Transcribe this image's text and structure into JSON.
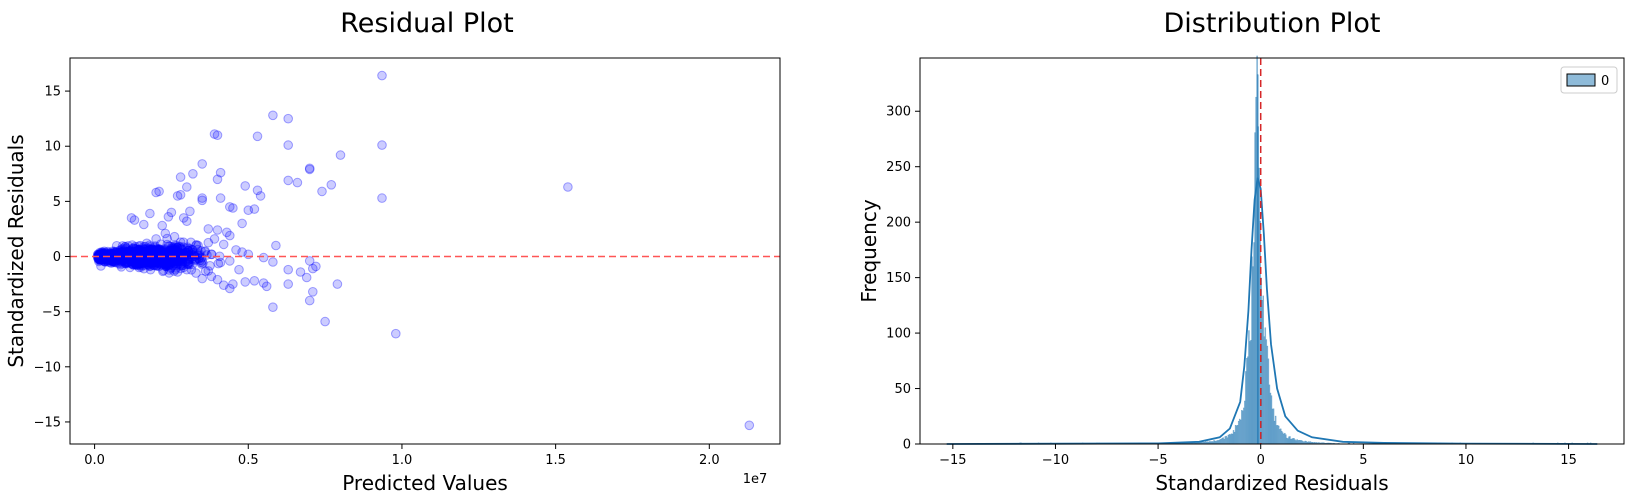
{
  "chart_data": [
    {
      "type": "scatter",
      "title": "Residual Plot",
      "xlabel": "Predicted Values",
      "ylabel": "Standardized Residuals",
      "x_offset_label": "1e7",
      "xlim": [
        -0.08,
        2.23
      ],
      "ylim": [
        -17,
        18
      ],
      "xticks": [
        0.0,
        0.5,
        1.0,
        1.5,
        2.0
      ],
      "xtick_labels": [
        "0.0",
        "0.5",
        "1.0",
        "1.5",
        "2.0"
      ],
      "yticks": [
        -15,
        -10,
        -5,
        0,
        5,
        10,
        15
      ],
      "ytick_labels": [
        "−15",
        "−10",
        "−5",
        "0",
        "5",
        "10",
        "15"
      ],
      "grid": false,
      "point_color": "#0000ff",
      "reference_line": {
        "y": 0,
        "color": "#ff5555",
        "style": "dashed"
      },
      "points": [
        [
          0.935,
          16.4
        ],
        [
          0.58,
          12.8
        ],
        [
          0.63,
          12.5
        ],
        [
          0.39,
          11.1
        ],
        [
          0.4,
          11.0
        ],
        [
          0.53,
          10.9
        ],
        [
          0.63,
          10.1
        ],
        [
          0.935,
          10.1
        ],
        [
          0.8,
          9.2
        ],
        [
          0.35,
          8.4
        ],
        [
          0.7,
          8.0
        ],
        [
          0.7,
          7.9
        ],
        [
          0.41,
          7.6
        ],
        [
          0.32,
          7.5
        ],
        [
          0.28,
          7.2
        ],
        [
          0.4,
          7.0
        ],
        [
          0.63,
          6.9
        ],
        [
          0.66,
          6.7
        ],
        [
          0.77,
          6.5
        ],
        [
          0.49,
          6.4
        ],
        [
          0.3,
          6.3
        ],
        [
          1.54,
          6.3
        ],
        [
          0.53,
          6.0
        ],
        [
          0.74,
          5.9
        ],
        [
          0.21,
          5.9
        ],
        [
          0.2,
          5.8
        ],
        [
          0.28,
          5.6
        ],
        [
          0.27,
          5.5
        ],
        [
          0.54,
          5.5
        ],
        [
          0.41,
          5.3
        ],
        [
          0.35,
          5.3
        ],
        [
          0.35,
          5.1
        ],
        [
          0.935,
          5.3
        ],
        [
          0.44,
          4.5
        ],
        [
          0.45,
          4.4
        ],
        [
          0.52,
          4.3
        ],
        [
          0.5,
          4.2
        ],
        [
          0.31,
          4.1
        ],
        [
          0.25,
          4.0
        ],
        [
          0.18,
          3.9
        ],
        [
          0.12,
          3.5
        ],
        [
          0.13,
          3.3
        ],
        [
          0.24,
          3.6
        ],
        [
          0.29,
          3.5
        ],
        [
          0.3,
          3.2
        ],
        [
          0.48,
          3.0
        ],
        [
          0.22,
          2.8
        ],
        [
          0.16,
          2.9
        ],
        [
          0.37,
          2.5
        ],
        [
          0.4,
          2.4
        ],
        [
          0.43,
          2.2
        ],
        [
          0.44,
          1.9
        ],
        [
          0.39,
          1.6
        ],
        [
          0.42,
          1.1
        ],
        [
          0.46,
          0.6
        ],
        [
          0.48,
          0.4
        ],
        [
          0.5,
          0.2
        ],
        [
          0.55,
          -0.1
        ],
        [
          0.59,
          1.0
        ],
        [
          0.58,
          -0.5
        ],
        [
          0.44,
          -0.4
        ],
        [
          0.47,
          -1.2
        ],
        [
          0.49,
          -2.3
        ],
        [
          0.45,
          -2.5
        ],
        [
          0.44,
          -2.9
        ],
        [
          0.42,
          -2.6
        ],
        [
          0.52,
          -2.2
        ],
        [
          0.55,
          -2.4
        ],
        [
          0.56,
          -2.7
        ],
        [
          0.58,
          -4.6
        ],
        [
          0.63,
          -1.2
        ],
        [
          0.63,
          -2.5
        ],
        [
          0.67,
          -1.4
        ],
        [
          0.7,
          -0.4
        ],
        [
          0.71,
          -1.1
        ],
        [
          0.72,
          -0.9
        ],
        [
          0.69,
          -1.9
        ],
        [
          0.71,
          -3.2
        ],
        [
          0.7,
          -4.0
        ],
        [
          0.75,
          -5.9
        ],
        [
          0.79,
          -2.5
        ],
        [
          0.98,
          -7.0
        ],
        [
          2.13,
          -15.3
        ],
        [
          0.37,
          -1.3
        ],
        [
          0.38,
          -1.8
        ],
        [
          0.4,
          -2.1
        ],
        [
          0.33,
          -1.5
        ],
        [
          0.35,
          -2.0
        ],
        [
          0.3,
          -1.2
        ],
        [
          0.25,
          -1.0
        ],
        [
          0.27,
          -1.4
        ],
        [
          0.21,
          -0.9
        ],
        [
          0.15,
          -0.8
        ],
        [
          0.1,
          -0.6
        ],
        [
          0.06,
          -0.4
        ],
        [
          0.03,
          -0.2
        ],
        [
          0.04,
          0.1
        ],
        [
          0.05,
          -0.3
        ],
        [
          0.08,
          0.3
        ],
        [
          0.12,
          0.6
        ],
        [
          0.17,
          1.2
        ],
        [
          0.2,
          1.6
        ],
        [
          0.23,
          2.1
        ],
        [
          0.26,
          1.8
        ],
        [
          0.33,
          1.0
        ],
        [
          0.36,
          0.5
        ],
        [
          0.38,
          0.2
        ],
        [
          0.35,
          -0.4
        ],
        [
          0.31,
          0.7
        ],
        [
          0.28,
          1.3
        ],
        [
          0.19,
          0.4
        ],
        [
          0.22,
          -0.2
        ],
        [
          0.14,
          -0.1
        ]
      ],
      "cluster": {
        "x_center": 0.16,
        "x_spread": 0.09,
        "y_spread": 0.55,
        "count": 1300
      }
    },
    {
      "type": "histogram",
      "title": "Distribution Plot",
      "xlabel": "Standardized Residuals",
      "ylabel": "Frequency",
      "xlim": [
        -16.6,
        17.7
      ],
      "ylim": [
        0,
        348
      ],
      "xticks": [
        -15,
        -10,
        -5,
        0,
        5,
        10,
        15
      ],
      "xtick_labels": [
        "−15",
        "−10",
        "−5",
        "0",
        "5",
        "10",
        "15"
      ],
      "yticks": [
        0,
        50,
        100,
        150,
        200,
        250,
        300
      ],
      "ytick_labels": [
        "0",
        "50",
        "100",
        "150",
        "200",
        "250",
        "300"
      ],
      "legend": {
        "entries": [
          "0"
        ],
        "placement": "top-right"
      },
      "bar_color": "#1f77b4",
      "kde_color": "#1f77b4",
      "reference_line": {
        "x": 0,
        "color": "#d62728",
        "style": "dashed"
      },
      "peak": {
        "x": -0.15,
        "height": 333
      },
      "range": [
        -15.3,
        16.4
      ],
      "kde_points": [
        [
          -15.3,
          0
        ],
        [
          -5,
          0.5
        ],
        [
          -3,
          2
        ],
        [
          -2,
          6
        ],
        [
          -1.5,
          14
        ],
        [
          -1.0,
          38
        ],
        [
          -0.8,
          70
        ],
        [
          -0.6,
          120
        ],
        [
          -0.45,
          175
        ],
        [
          -0.3,
          220
        ],
        [
          -0.15,
          240
        ],
        [
          0,
          230
        ],
        [
          0.15,
          190
        ],
        [
          0.3,
          140
        ],
        [
          0.5,
          90
        ],
        [
          0.8,
          50
        ],
        [
          1.2,
          25
        ],
        [
          1.8,
          12
        ],
        [
          2.5,
          6
        ],
        [
          4,
          2
        ],
        [
          6,
          1
        ],
        [
          10,
          0.4
        ],
        [
          16.4,
          0
        ]
      ]
    }
  ]
}
